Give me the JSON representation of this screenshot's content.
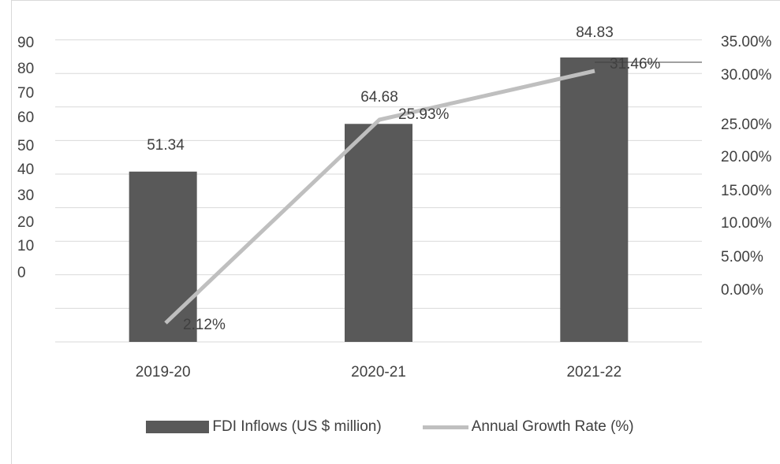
{
  "chart_data": {
    "type": "bar",
    "title": "",
    "categories": [
      "2019-20",
      "2020-21",
      "2021-22"
    ],
    "series": [
      {
        "name": "FDI Inflows (US $ million)",
        "type": "bar",
        "axis": "left",
        "values": [
          51.34,
          64.68,
          84.83
        ],
        "value_labels": [
          "51.34",
          "64.68",
          "84.83"
        ]
      },
      {
        "name": "Annual Growth Rate (%)",
        "type": "line",
        "axis": "right",
        "values": [
          2.12,
          25.93,
          31.46
        ],
        "value_labels": [
          "2.12%",
          "25.93%",
          "31.46%"
        ]
      }
    ],
    "y_left": {
      "ticks": [
        "90",
        "80",
        "70",
        "60",
        "50",
        "40",
        "30",
        "20",
        "10",
        "0"
      ]
    },
    "y_right": {
      "ticks": [
        "35.00%",
        "30.00%",
        "25.00%",
        "20.00%",
        "15.00%",
        "10.00%",
        "5.00%",
        "0.00%"
      ]
    },
    "grid": true,
    "legend_position": "bottom",
    "colors": {
      "bar": "#595959",
      "line": "#bfbfbf",
      "grid": "#d9d9d9",
      "text": "#404040"
    }
  }
}
